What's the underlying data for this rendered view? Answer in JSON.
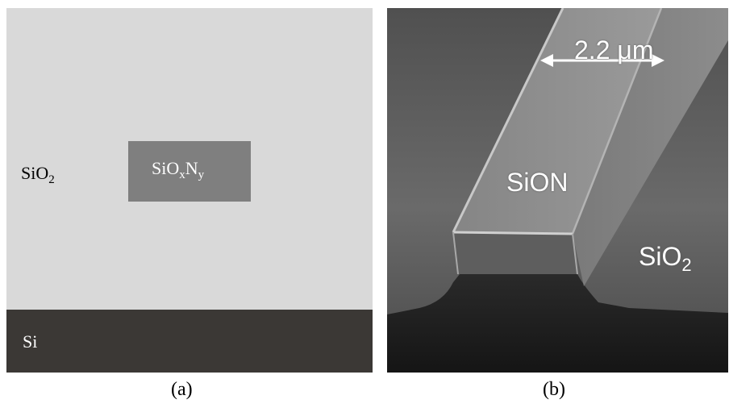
{
  "panel_a": {
    "cladding_label": "SiO",
    "cladding_sub": "2",
    "core_label_1": "SiO",
    "core_sub_x": "x",
    "core_label_2": "N",
    "core_sub_y": "y",
    "substrate_label": "Si",
    "caption": "(a)"
  },
  "panel_b": {
    "width_label": "2.2 μm",
    "core_label": "SiON",
    "cladding_label": "SiO",
    "cladding_sub": "2",
    "caption": "(b)"
  },
  "colors": {
    "cladding": "#d9d9d9",
    "core": "#7f7f7f",
    "substrate": "#3b3835"
  }
}
